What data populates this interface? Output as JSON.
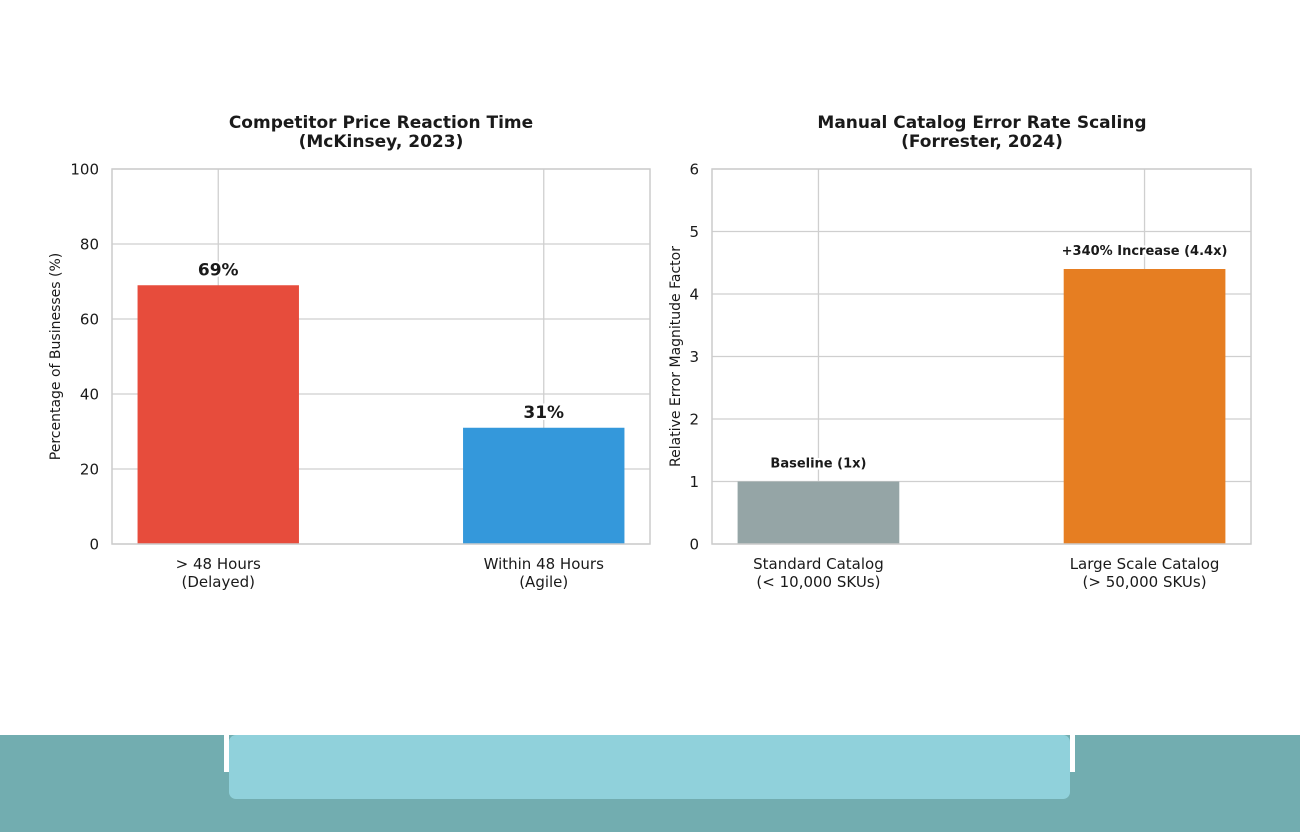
{
  "chart_data": [
    {
      "type": "bar",
      "title": "Competitor Price Reaction Time",
      "subtitle": "(McKinsey, 2023)",
      "categories": [
        [
          "> 48 Hours",
          "(Delayed)"
        ],
        [
          "Within 48 Hours",
          "(Agile)"
        ]
      ],
      "values": [
        69,
        31
      ],
      "data_labels": [
        "69%",
        "31%"
      ],
      "colors": [
        "#e74c3c",
        "#3498db"
      ],
      "ylabel": "Percentage of Businesses (%)",
      "ylim": [
        0,
        100
      ],
      "yticks": [
        0,
        20,
        40,
        60,
        80,
        100
      ],
      "grid": true
    },
    {
      "type": "bar",
      "title": "Manual Catalog Error Rate Scaling",
      "subtitle": "(Forrester, 2024)",
      "categories": [
        [
          "Standard Catalog",
          "(< 10,000 SKUs)"
        ],
        [
          "Large Scale Catalog",
          "(> 50,000 SKUs)"
        ]
      ],
      "values": [
        1,
        4.4
      ],
      "data_labels": [
        "Baseline (1x)",
        "+340% Increase (4.4x)"
      ],
      "colors": [
        "#95a5a6",
        "#e67e22"
      ],
      "ylabel": "Relative Error Magnitude Factor",
      "ylim": [
        0,
        6
      ],
      "yticks": [
        0,
        1,
        2,
        3,
        4,
        5,
        6
      ],
      "grid": true
    }
  ],
  "footer": {
    "bar_color": "#72adb0",
    "panel_color": "#90d1db"
  }
}
